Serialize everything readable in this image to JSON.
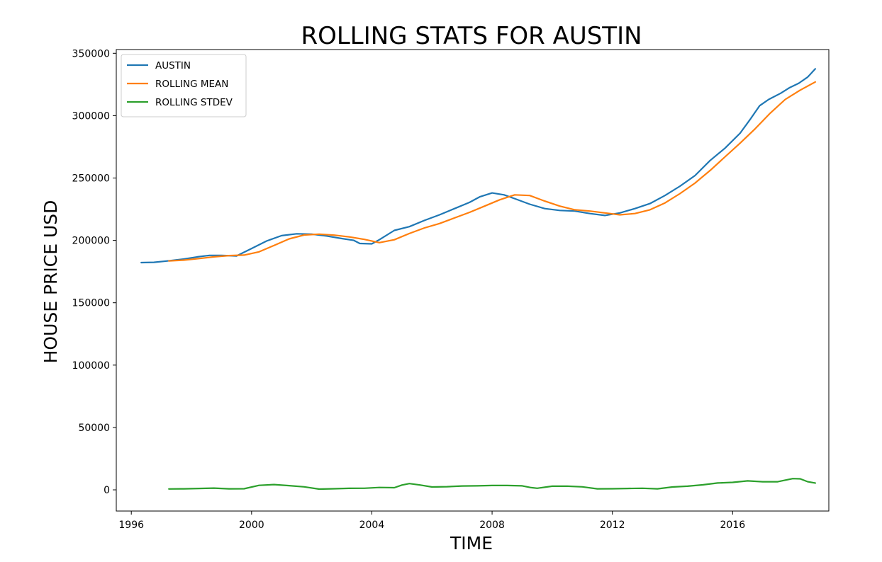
{
  "chart_data": {
    "type": "line",
    "title": "ROLLING STATS FOR AUSTIN",
    "xlabel": "TIME",
    "ylabel": "HOUSE PRICE USD",
    "xlim": [
      1995.5,
      2019.2
    ],
    "ylim": [
      -17000,
      353000
    ],
    "x_ticks": [
      1996,
      2000,
      2004,
      2008,
      2012,
      2016
    ],
    "x_tick_labels": [
      "1996",
      "2000",
      "2004",
      "2008",
      "2012",
      "2016"
    ],
    "y_ticks": [
      0,
      50000,
      100000,
      150000,
      200000,
      250000,
      300000,
      350000
    ],
    "y_tick_labels": [
      "0",
      "50000",
      "100000",
      "150000",
      "200000",
      "250000",
      "300000",
      "350000"
    ],
    "grid": false,
    "legend_position": "top-left",
    "series": [
      {
        "name": "AUSTIN",
        "color": "#1f77b4",
        "points": [
          [
            1996.33,
            182200
          ],
          [
            1996.75,
            182400
          ],
          [
            1997.2,
            183500
          ],
          [
            1997.75,
            185000
          ],
          [
            1998.2,
            186800
          ],
          [
            1998.6,
            188000
          ],
          [
            1999.0,
            188000
          ],
          [
            1999.5,
            187500
          ],
          [
            2000.0,
            193500
          ],
          [
            2000.5,
            199500
          ],
          [
            2001.0,
            203800
          ],
          [
            2001.5,
            205300
          ],
          [
            2002.0,
            205000
          ],
          [
            2002.5,
            203500
          ],
          [
            2003.0,
            201500
          ],
          [
            2003.4,
            200000
          ],
          [
            2003.6,
            197500
          ],
          [
            2004.0,
            197200
          ],
          [
            2004.25,
            200500
          ],
          [
            2004.75,
            208000
          ],
          [
            2005.25,
            211000
          ],
          [
            2005.75,
            216000
          ],
          [
            2006.25,
            220500
          ],
          [
            2006.75,
            225500
          ],
          [
            2007.25,
            230500
          ],
          [
            2007.6,
            235000
          ],
          [
            2008.0,
            238000
          ],
          [
            2008.4,
            236500
          ],
          [
            2008.75,
            233500
          ],
          [
            2009.25,
            229000
          ],
          [
            2009.75,
            225500
          ],
          [
            2010.25,
            224000
          ],
          [
            2010.75,
            223500
          ],
          [
            2011.25,
            221500
          ],
          [
            2011.75,
            220000
          ],
          [
            2012.25,
            222000
          ],
          [
            2012.75,
            225500
          ],
          [
            2013.25,
            229500
          ],
          [
            2013.75,
            236000
          ],
          [
            2014.25,
            243500
          ],
          [
            2014.75,
            252000
          ],
          [
            2015.25,
            264000
          ],
          [
            2015.75,
            274000
          ],
          [
            2016.25,
            286000
          ],
          [
            2016.6,
            297500
          ],
          [
            2016.9,
            308000
          ],
          [
            2017.2,
            313000
          ],
          [
            2017.6,
            318000
          ],
          [
            2017.9,
            322500
          ],
          [
            2018.2,
            326000
          ],
          [
            2018.5,
            331000
          ],
          [
            2018.75,
            337500
          ]
        ]
      },
      {
        "name": "ROLLING MEAN",
        "color": "#ff7f0e",
        "points": [
          [
            1997.25,
            183500
          ],
          [
            1997.75,
            184200
          ],
          [
            1998.25,
            185400
          ],
          [
            1998.75,
            186800
          ],
          [
            1999.25,
            187800
          ],
          [
            1999.75,
            188200
          ],
          [
            2000.25,
            190800
          ],
          [
            2000.75,
            196000
          ],
          [
            2001.25,
            201200
          ],
          [
            2001.75,
            204300
          ],
          [
            2002.25,
            205000
          ],
          [
            2002.75,
            204200
          ],
          [
            2003.25,
            202800
          ],
          [
            2003.75,
            200800
          ],
          [
            2004.25,
            198200
          ],
          [
            2004.75,
            200500
          ],
          [
            2005.25,
            205500
          ],
          [
            2005.75,
            210000
          ],
          [
            2006.25,
            213500
          ],
          [
            2006.75,
            218000
          ],
          [
            2007.25,
            222500
          ],
          [
            2007.75,
            227500
          ],
          [
            2008.25,
            232500
          ],
          [
            2008.75,
            236500
          ],
          [
            2009.25,
            236000
          ],
          [
            2009.75,
            231500
          ],
          [
            2010.25,
            227500
          ],
          [
            2010.75,
            224500
          ],
          [
            2011.25,
            223500
          ],
          [
            2011.75,
            222000
          ],
          [
            2012.25,
            220500
          ],
          [
            2012.75,
            221500
          ],
          [
            2013.25,
            224500
          ],
          [
            2013.75,
            230000
          ],
          [
            2014.25,
            237500
          ],
          [
            2014.75,
            246000
          ],
          [
            2015.25,
            256000
          ],
          [
            2015.75,
            267000
          ],
          [
            2016.25,
            278000
          ],
          [
            2016.75,
            289500
          ],
          [
            2017.25,
            302000
          ],
          [
            2017.75,
            313000
          ],
          [
            2018.25,
            320500
          ],
          [
            2018.75,
            327000
          ]
        ]
      },
      {
        "name": "ROLLING STDEV",
        "color": "#2ca02c",
        "points": [
          [
            1997.25,
            700
          ],
          [
            1997.75,
            800
          ],
          [
            1998.25,
            1100
          ],
          [
            1998.75,
            1400
          ],
          [
            1999.25,
            800
          ],
          [
            1999.75,
            900
          ],
          [
            2000.25,
            3600
          ],
          [
            2000.75,
            4200
          ],
          [
            2001.25,
            3400
          ],
          [
            2001.75,
            2400
          ],
          [
            2002.25,
            600
          ],
          [
            2002.75,
            900
          ],
          [
            2003.25,
            1200
          ],
          [
            2003.75,
            1300
          ],
          [
            2004.25,
            1900
          ],
          [
            2004.75,
            1700
          ],
          [
            2005.0,
            3800
          ],
          [
            2005.25,
            5000
          ],
          [
            2005.6,
            3900
          ],
          [
            2006.0,
            2300
          ],
          [
            2006.5,
            2500
          ],
          [
            2007.0,
            3100
          ],
          [
            2007.5,
            3200
          ],
          [
            2008.0,
            3500
          ],
          [
            2008.5,
            3500
          ],
          [
            2009.0,
            3200
          ],
          [
            2009.3,
            1800
          ],
          [
            2009.5,
            1300
          ],
          [
            2010.0,
            2900
          ],
          [
            2010.5,
            2900
          ],
          [
            2011.0,
            2400
          ],
          [
            2011.5,
            800
          ],
          [
            2012.0,
            900
          ],
          [
            2012.5,
            1100
          ],
          [
            2013.0,
            1300
          ],
          [
            2013.5,
            800
          ],
          [
            2014.0,
            2300
          ],
          [
            2014.5,
            2900
          ],
          [
            2015.0,
            4000
          ],
          [
            2015.5,
            5500
          ],
          [
            2016.0,
            6000
          ],
          [
            2016.5,
            7200
          ],
          [
            2017.0,
            6500
          ],
          [
            2017.5,
            6500
          ],
          [
            2018.0,
            9000
          ],
          [
            2018.25,
            8800
          ],
          [
            2018.5,
            6500
          ],
          [
            2018.75,
            5500
          ]
        ]
      }
    ]
  }
}
